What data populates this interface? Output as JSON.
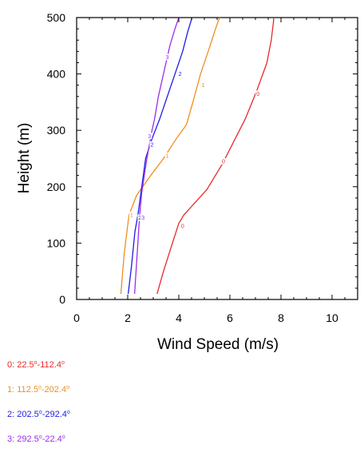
{
  "chart_data": {
    "type": "line",
    "title": "",
    "xlabel": "Wind Speed (m/s)",
    "ylabel": "Height (m)",
    "xlim": [
      0,
      11
    ],
    "ylim": [
      0,
      500
    ],
    "xticks": [
      0,
      2,
      4,
      6,
      8,
      10
    ],
    "yticks": [
      0,
      100,
      200,
      300,
      400,
      500
    ],
    "grid": false,
    "legend_position": "bottom-left",
    "series": [
      {
        "name": "0",
        "color": "#e8282b",
        "x": [
          3.15,
          3.4,
          3.75,
          4.0,
          4.2,
          4.5,
          5.1,
          5.7,
          6.15,
          6.6,
          7.05,
          7.45,
          7.62,
          7.7,
          7.72
        ],
        "y": [
          10,
          50,
          100,
          135,
          150,
          165,
          195,
          240,
          280,
          320,
          370,
          420,
          460,
          490,
          500
        ]
      },
      {
        "name": "1",
        "color": "#ef8f1f",
        "x": [
          1.73,
          1.86,
          2.05,
          2.35,
          2.9,
          3.4,
          3.9,
          4.3,
          4.55,
          4.85,
          5.15,
          5.4,
          5.55,
          5.62
        ],
        "y": [
          10,
          80,
          150,
          185,
          220,
          250,
          285,
          310,
          350,
          400,
          440,
          475,
          495,
          500
        ]
      },
      {
        "name": "2",
        "color": "#1c1ce8",
        "x": [
          2.02,
          2.15,
          2.28,
          2.4,
          2.55,
          2.7,
          2.95,
          3.25,
          3.55,
          3.85,
          4.15,
          4.35,
          4.52
        ],
        "y": [
          10,
          60,
          120,
          150,
          200,
          250,
          285,
          320,
          360,
          400,
          440,
          475,
          500
        ]
      },
      {
        "name": "3",
        "color": "#9a2ee8",
        "x": [
          2.27,
          2.37,
          2.47,
          2.55,
          2.75,
          2.95,
          3.05,
          3.2,
          3.45,
          3.65,
          3.85,
          4.0
        ],
        "y": [
          10,
          80,
          150,
          190,
          250,
          300,
          320,
          360,
          410,
          450,
          480,
          500
        ]
      }
    ],
    "line_labels": [
      {
        "series": "0",
        "text": "0",
        "points": [
          [
            4.15,
            130
          ],
          [
            5.75,
            245
          ],
          [
            7.1,
            365
          ]
        ]
      },
      {
        "series": "1",
        "text": "1",
        "points": [
          [
            2.15,
            150
          ],
          [
            3.55,
            255
          ],
          [
            4.95,
            380
          ]
        ]
      },
      {
        "series": "2",
        "text": "2",
        "points": [
          [
            2.48,
            145
          ],
          [
            2.95,
            275
          ],
          [
            4.05,
            400
          ]
        ]
      },
      {
        "series": "3",
        "text": "3",
        "points": [
          [
            2.6,
            145
          ],
          [
            2.85,
            290
          ],
          [
            3.55,
            430
          ]
        ]
      }
    ]
  },
  "legend": [
    {
      "index": "0",
      "range": "22.5",
      "to": "-112.4",
      "deg": "o",
      "color": "#e8282b"
    },
    {
      "index": "1",
      "range": "112.5",
      "to": "-202.4",
      "deg": "o",
      "color": "#ef8f1f"
    },
    {
      "index": "2",
      "range": "202.5",
      "to": "-292.4",
      "deg": "o",
      "color": "#1c1ce8"
    },
    {
      "index": "3",
      "range": "292.5",
      "to": "-22.4",
      "deg": "o",
      "color": "#9a2ee8"
    }
  ]
}
